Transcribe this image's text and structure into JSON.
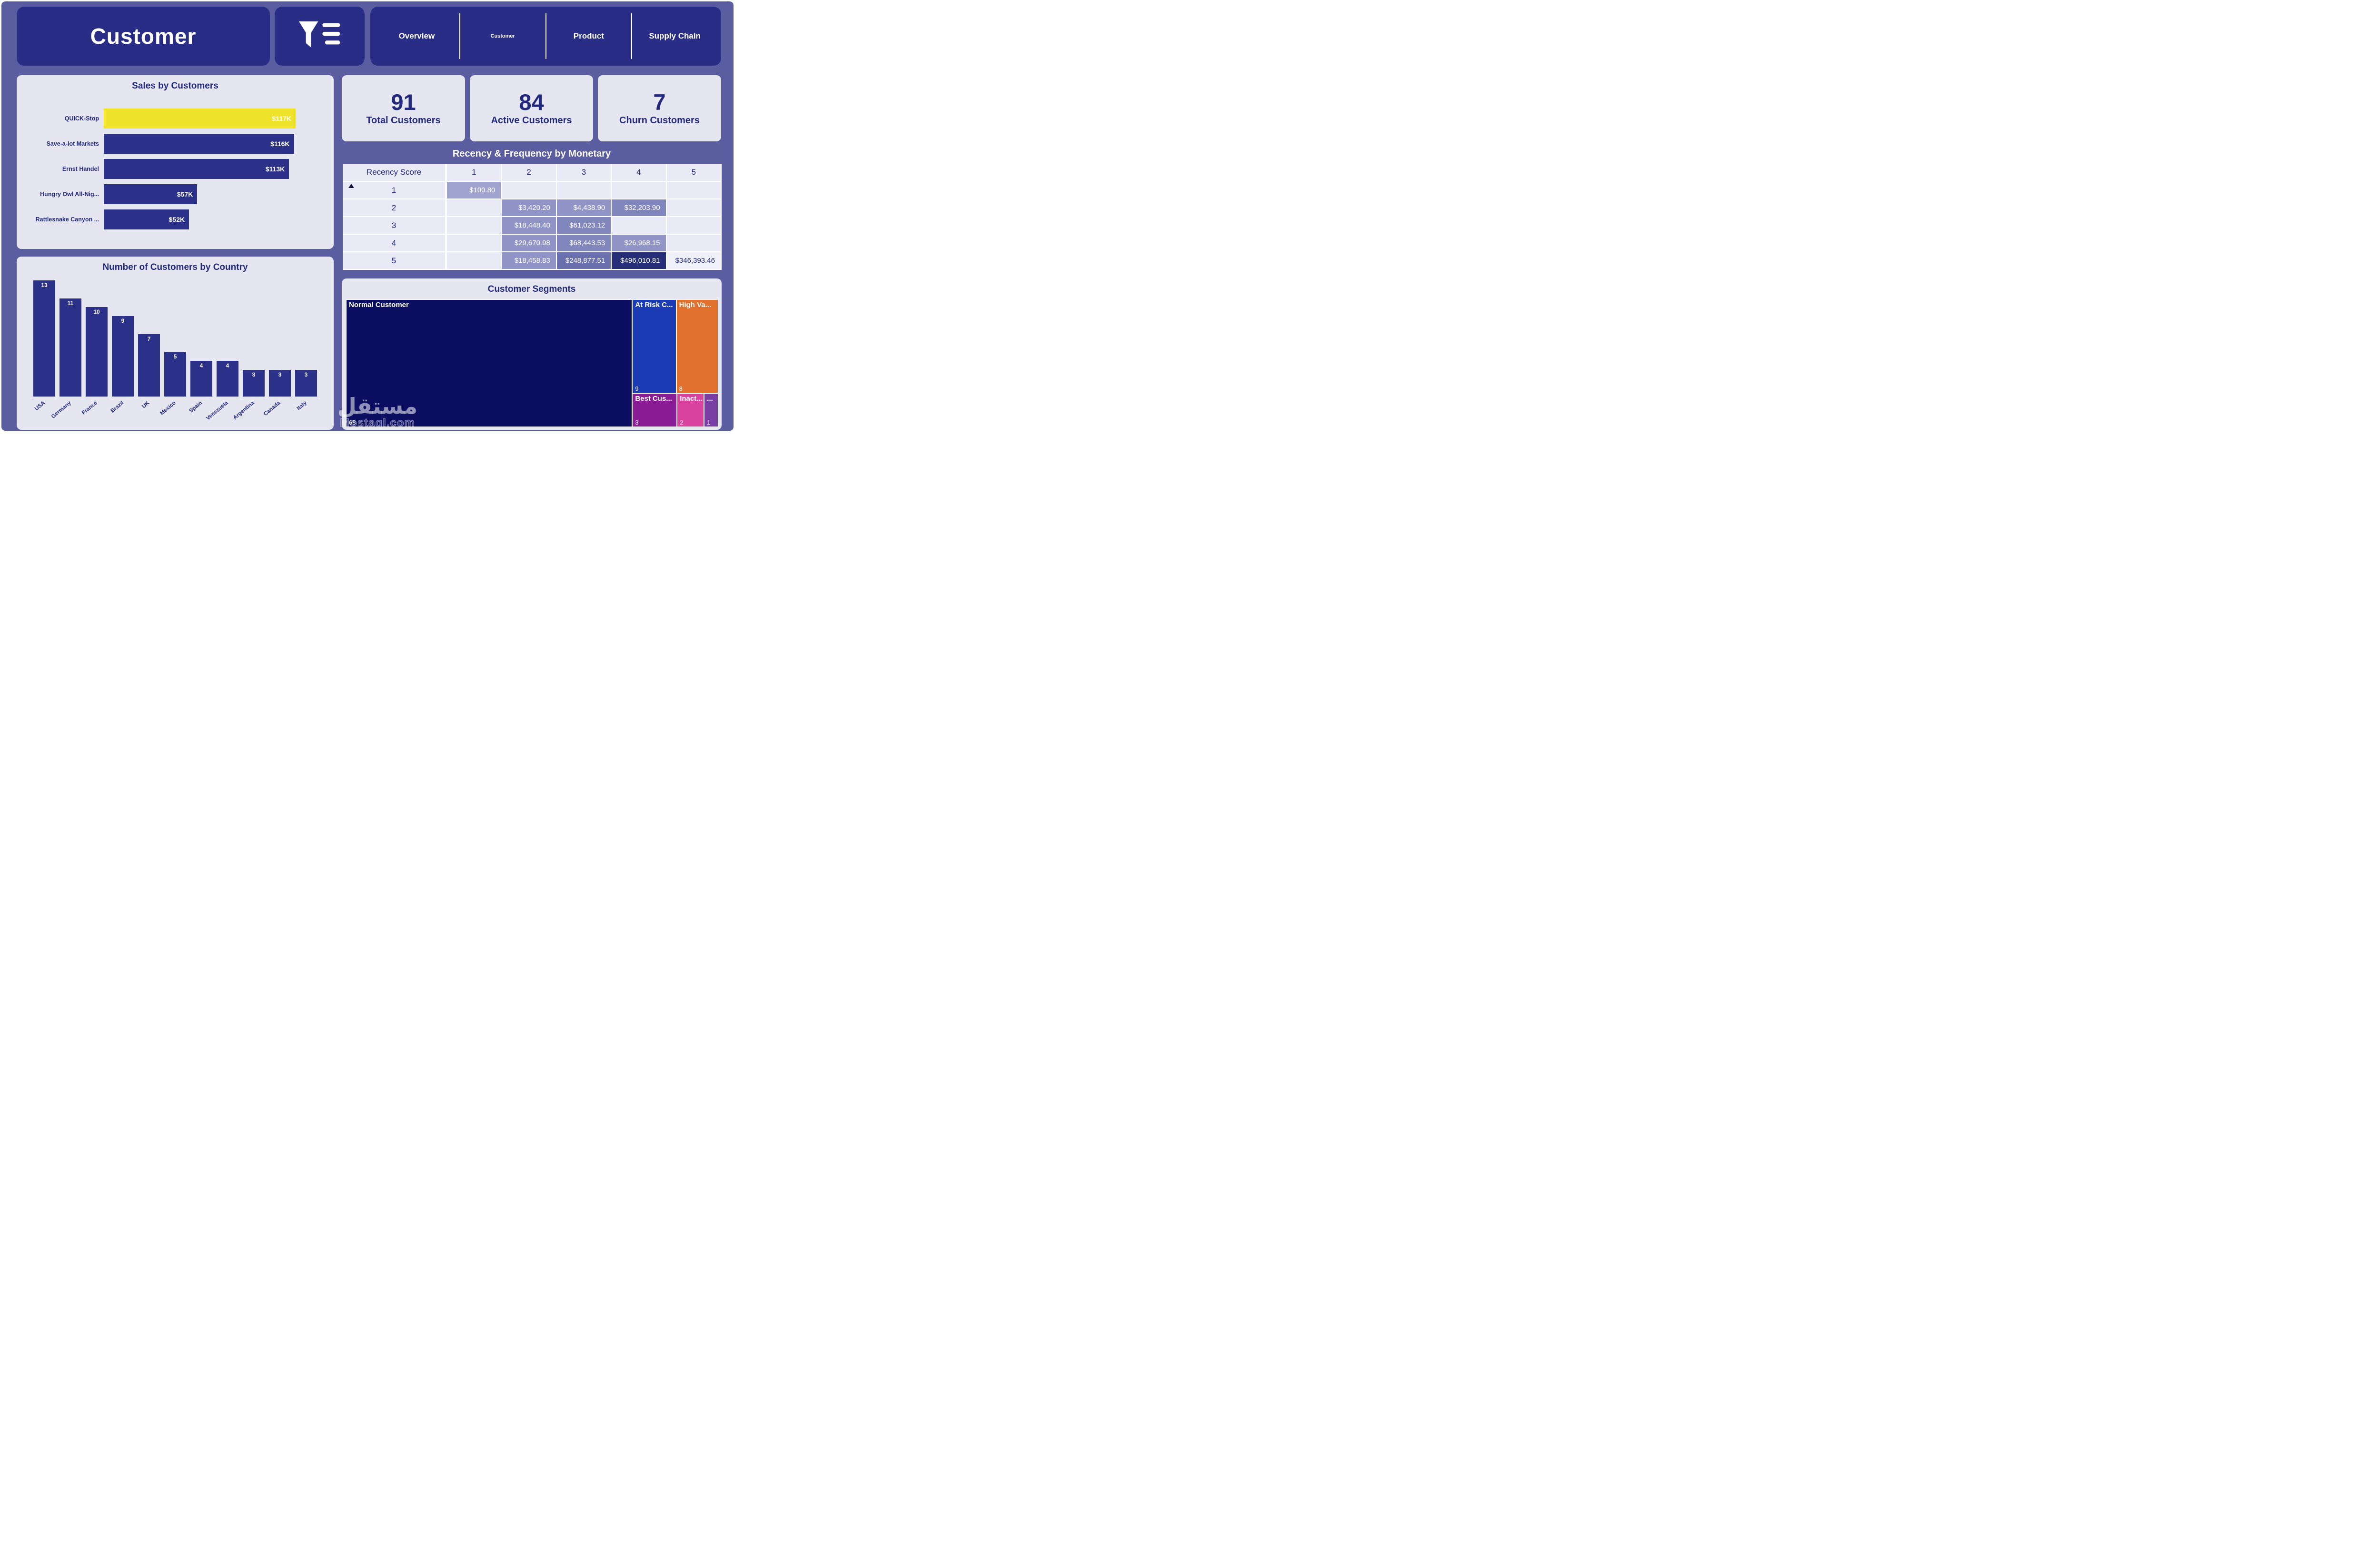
{
  "header": {
    "title": "Customer",
    "nav": [
      {
        "label": "Overview",
        "active": false
      },
      {
        "label": "Customer",
        "active": true
      },
      {
        "label": "Product",
        "active": false
      },
      {
        "label": "Supply Chain",
        "active": false
      }
    ]
  },
  "kpis": [
    {
      "value": "91",
      "label": "Total Customers"
    },
    {
      "value": "84",
      "label": "Active Customers"
    },
    {
      "value": "7",
      "label": "Churn Customers"
    }
  ],
  "colors": {
    "canvas": "#5a5da0",
    "header_navy": "#292d86",
    "panel_light": "#e6e6f1",
    "bar_navy": "#2b3088",
    "highlight_yellow": "#efe32b",
    "text_navy": "#232a7d"
  },
  "watermark": {
    "arabic": "مستقل",
    "latin": "Mostaql.com"
  },
  "chart_data": [
    {
      "name": "sales_by_customers",
      "type": "bar",
      "orientation": "horizontal",
      "title": "Sales by Customers",
      "categories": [
        "QUICK-Stop",
        "Save-a-lot Markets",
        "Ernst Handel",
        "Hungry Owl All-Nig...",
        "Rattlesnake Canyon ..."
      ],
      "values": [
        117,
        116,
        113,
        57,
        52
      ],
      "labels": [
        "$117K",
        "$116K",
        "$113K",
        "$57K",
        "$52K"
      ],
      "highlight_index": 0,
      "xlim": [
        0,
        117
      ]
    },
    {
      "name": "customers_by_country",
      "type": "bar",
      "orientation": "vertical",
      "title": "Number of Customers by Country",
      "categories": [
        "USA",
        "Germany",
        "France",
        "Brazil",
        "UK",
        "Mexico",
        "Spain",
        "Venezuela",
        "Argentina",
        "Canada",
        "Italy"
      ],
      "values": [
        13,
        11,
        10,
        9,
        7,
        5,
        4,
        4,
        3,
        3,
        3
      ],
      "ylim": [
        0,
        13
      ]
    },
    {
      "name": "recency_frequency_by_monetary",
      "type": "heatmap",
      "title": "Recency & Frequency by Monetary",
      "row_header": "Recency Score",
      "columns": [
        "1",
        "2",
        "3",
        "4",
        "5"
      ],
      "rows": [
        "1",
        "2",
        "3",
        "4",
        "5"
      ],
      "cells": [
        [
          "$100.80",
          "",
          "",
          "",
          ""
        ],
        [
          "",
          "$3,420.20",
          "$4,438.90",
          "$32,203.90",
          ""
        ],
        [
          "",
          "$18,448.40",
          "$61,023.12",
          "",
          ""
        ],
        [
          "",
          "$29,670.98",
          "$68,443.53",
          "$26,968.15",
          ""
        ],
        [
          "",
          "$18,458.83",
          "$248,877.51",
          "$496,010.81",
          "$346,393.46"
        ]
      ],
      "cell_styles": [
        [
          "light",
          null,
          null,
          null,
          null
        ],
        [
          null,
          "mid",
          "mid",
          "mid2",
          null
        ],
        [
          null,
          "mid",
          "mid2",
          null,
          null
        ],
        [
          null,
          "mid",
          "mid2",
          "mid",
          null
        ],
        [
          null,
          "mid",
          "dark2",
          "darkest",
          "pale"
        ]
      ]
    },
    {
      "name": "customer_segments",
      "type": "treemap",
      "title": "Customer Segments",
      "segments": [
        {
          "label": "Normal Customer",
          "value": 68,
          "color": "#0a0d60"
        },
        {
          "label": "At Risk C...",
          "value": 9,
          "color": "#1a3bb3"
        },
        {
          "label": "High Va...",
          "value": 8,
          "color": "#e1712d"
        },
        {
          "label": "Best Cus...",
          "value": 3,
          "color": "#8a1d96"
        },
        {
          "label": "Inact...",
          "value": 2,
          "color": "#d9439f"
        },
        {
          "label": "...",
          "value": 1,
          "color": "#7a3fa5"
        }
      ]
    }
  ]
}
